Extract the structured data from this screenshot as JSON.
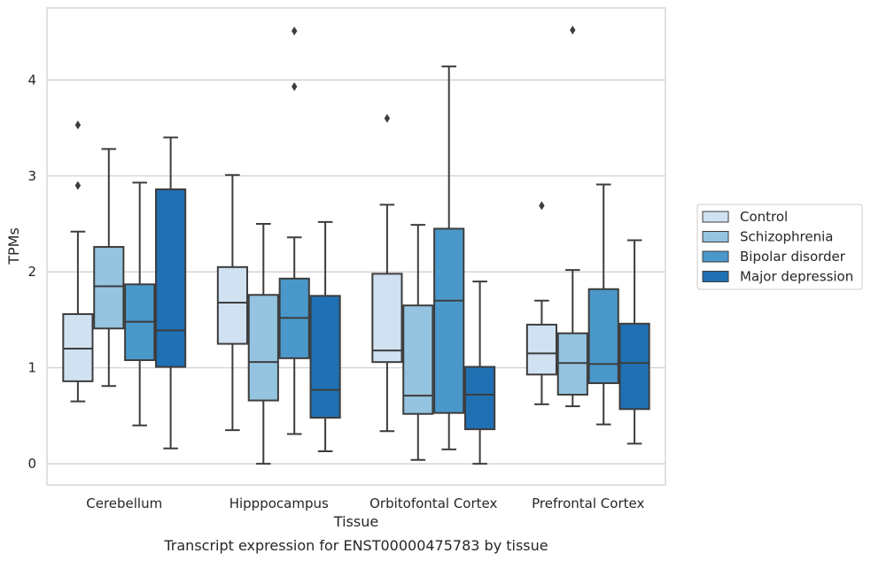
{
  "chart_data": {
    "type": "boxplot",
    "title": "",
    "caption": "Transcript expression for ENST00000475783 by tissue",
    "xlabel": "Tissue",
    "ylabel": "TPMs",
    "ylim": [
      -0.22,
      4.75
    ],
    "yticks": [
      0,
      1,
      2,
      3,
      4
    ],
    "grid": "horizontal",
    "legend_position": "right",
    "categories": [
      "Cerebellum",
      "Hipppocampus",
      "Orbitofontal Cortex",
      "Prefrontal Cortex"
    ],
    "series": [
      {
        "name": "Control",
        "color": "#d0e1f2",
        "boxes": [
          {
            "whislo": 0.65,
            "q1": 0.86,
            "med": 1.2,
            "q3": 1.56,
            "whishi": 2.42,
            "fliers": [
              2.9,
              3.53
            ]
          },
          {
            "whislo": 0.35,
            "q1": 1.25,
            "med": 1.68,
            "q3": 2.05,
            "whishi": 3.01,
            "fliers": []
          },
          {
            "whislo": 0.34,
            "q1": 1.06,
            "med": 1.18,
            "q3": 1.98,
            "whishi": 2.7,
            "fliers": [
              3.6
            ]
          },
          {
            "whislo": 0.62,
            "q1": 0.93,
            "med": 1.15,
            "q3": 1.45,
            "whishi": 1.7,
            "fliers": [
              2.69
            ]
          }
        ]
      },
      {
        "name": "Schizophrenia",
        "color": "#94c4df",
        "boxes": [
          {
            "whislo": 0.81,
            "q1": 1.41,
            "med": 1.85,
            "q3": 2.26,
            "whishi": 3.28,
            "fliers": []
          },
          {
            "whislo": 0.0,
            "q1": 0.66,
            "med": 1.06,
            "q3": 1.76,
            "whishi": 2.5,
            "fliers": []
          },
          {
            "whislo": 0.04,
            "q1": 0.52,
            "med": 0.71,
            "q3": 1.65,
            "whishi": 2.49,
            "fliers": []
          },
          {
            "whislo": 0.6,
            "q1": 0.72,
            "med": 1.05,
            "q3": 1.36,
            "whishi": 2.02,
            "fliers": [
              4.52
            ]
          }
        ]
      },
      {
        "name": "Bipolar disorder",
        "color": "#4a98c9",
        "boxes": [
          {
            "whislo": 0.4,
            "q1": 1.08,
            "med": 1.48,
            "q3": 1.87,
            "whishi": 2.93,
            "fliers": []
          },
          {
            "whislo": 0.31,
            "q1": 1.1,
            "med": 1.52,
            "q3": 1.93,
            "whishi": 2.36,
            "fliers": [
              3.93,
              4.51
            ]
          },
          {
            "whislo": 0.15,
            "q1": 0.53,
            "med": 1.7,
            "q3": 2.45,
            "whishi": 4.14,
            "fliers": []
          },
          {
            "whislo": 0.41,
            "q1": 0.84,
            "med": 1.04,
            "q3": 1.82,
            "whishi": 2.91,
            "fliers": []
          }
        ]
      },
      {
        "name": "Major depression",
        "color": "#2070b4",
        "boxes": [
          {
            "whislo": 0.16,
            "q1": 1.01,
            "med": 1.39,
            "q3": 2.86,
            "whishi": 3.4,
            "fliers": []
          },
          {
            "whislo": 0.13,
            "q1": 0.48,
            "med": 0.77,
            "q3": 1.75,
            "whishi": 2.52,
            "fliers": []
          },
          {
            "whislo": 0.0,
            "q1": 0.36,
            "med": 0.72,
            "q3": 1.01,
            "whishi": 1.9,
            "fliers": []
          },
          {
            "whislo": 0.21,
            "q1": 0.57,
            "med": 1.05,
            "q3": 1.46,
            "whishi": 2.33,
            "fliers": []
          }
        ]
      }
    ]
  }
}
